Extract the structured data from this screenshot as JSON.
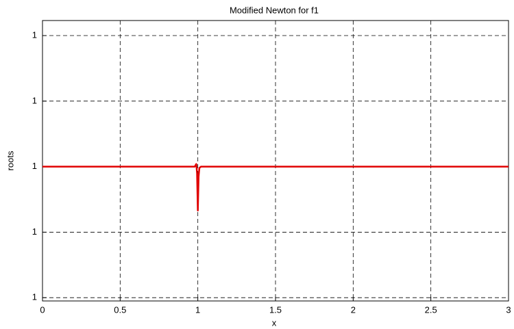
{
  "chart_data": {
    "type": "line",
    "title": "Modified Newton for f1",
    "xlabel": "x",
    "ylabel": "roots",
    "x": [
      0,
      0.5,
      0.98,
      0.99,
      0.995,
      1.0,
      1.005,
      1.01,
      1.02,
      1.5,
      2,
      2.5,
      3
    ],
    "series": [
      {
        "name": "roots",
        "color": "#e00000",
        "values": [
          1,
          1,
          1,
          1.0000000004,
          0.999999999,
          0.9999999933,
          0.9999999985,
          0.9999999998,
          1,
          1,
          1,
          1,
          1
        ]
      }
    ],
    "xlim": [
      0,
      3
    ],
    "xticks": [
      0,
      0.5,
      1,
      1.5,
      2,
      2.5,
      3
    ],
    "ylim": [
      0.9999999795,
      1.0000000223
    ],
    "yticks": [
      {
        "value": 0.99999998,
        "label": "1"
      },
      {
        "value": 0.99999999,
        "label": "1"
      },
      1,
      {
        "value": 1.00000001,
        "label": "1"
      },
      {
        "value": 1.00000002,
        "label": "1"
      }
    ],
    "grid": true
  }
}
